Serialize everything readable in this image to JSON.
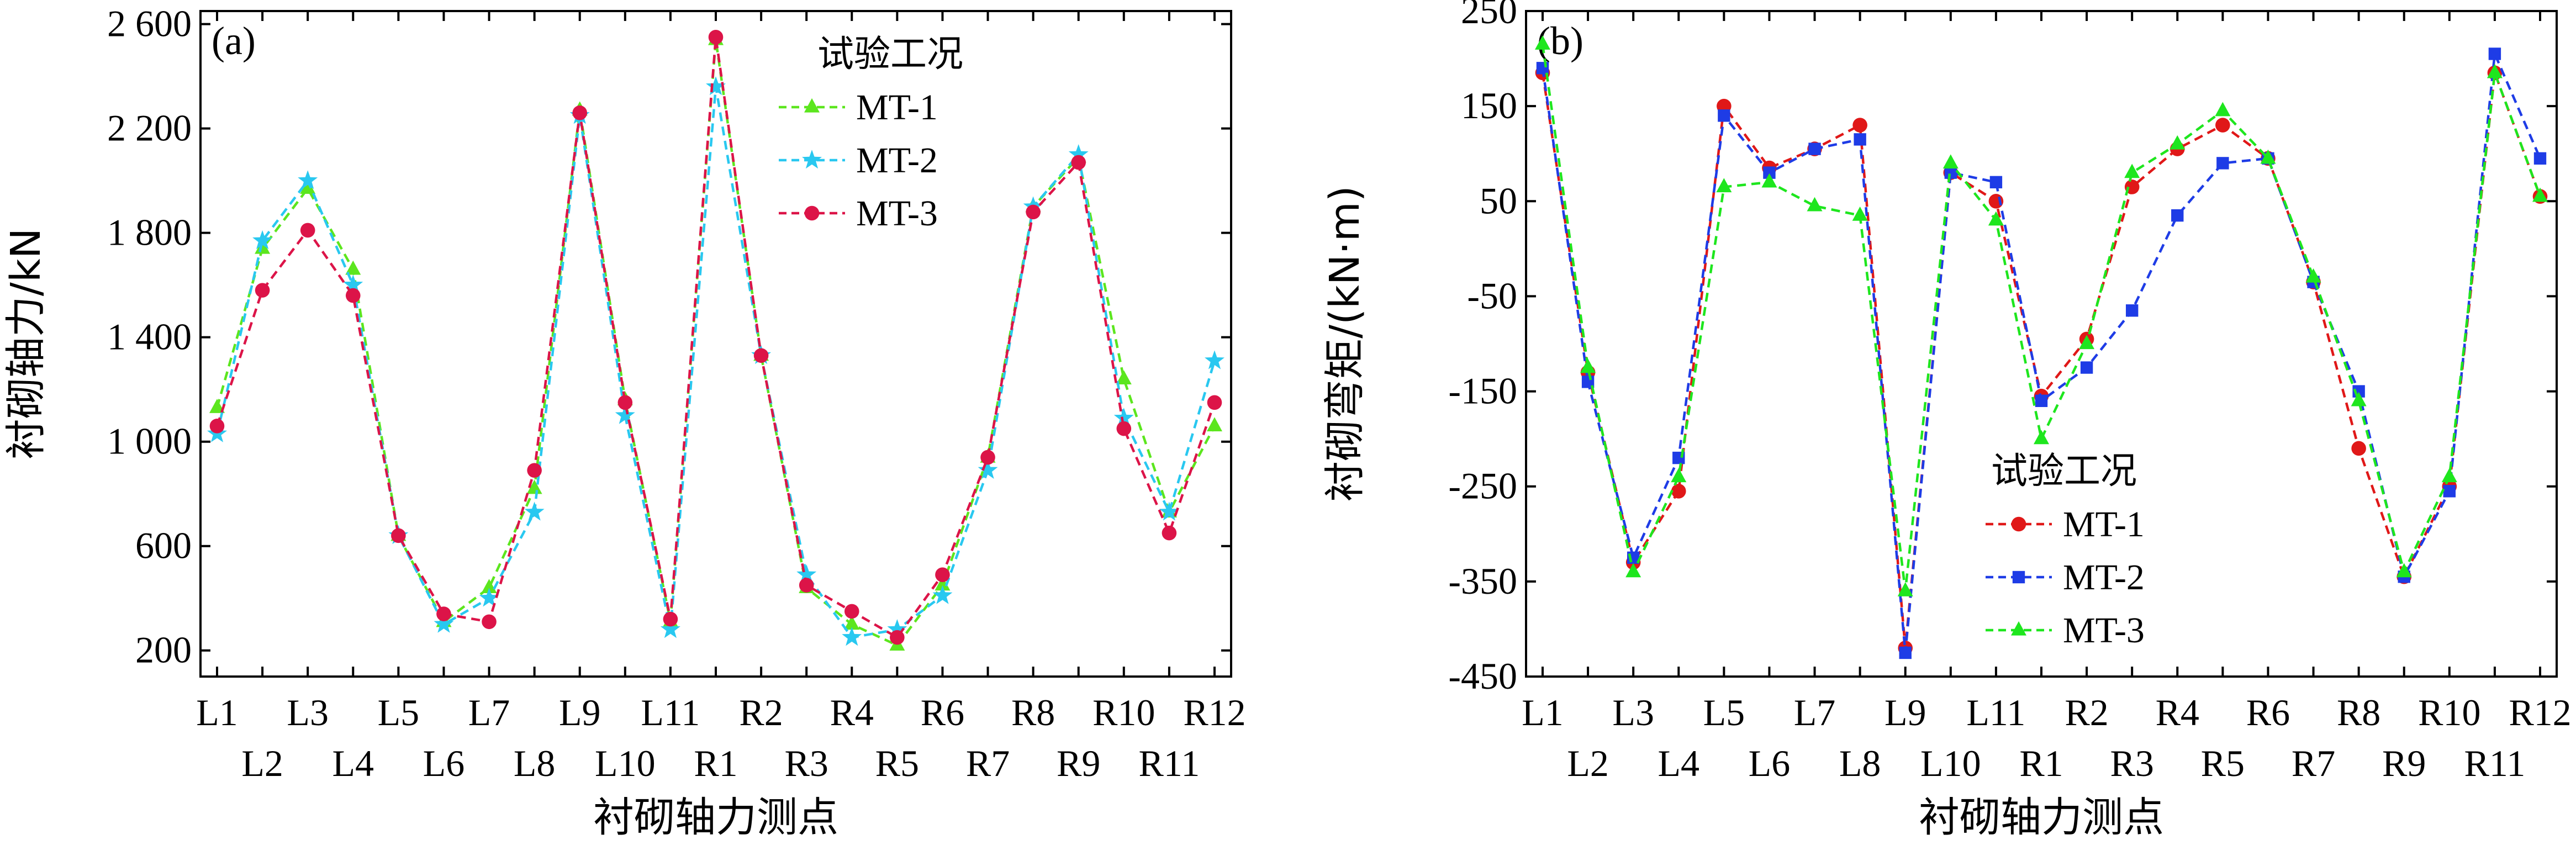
{
  "chart_data": [
    {
      "type": "line",
      "panel_label": "(a)",
      "title": "",
      "xlabel": "衬砌轴力测点",
      "ylabel": "衬砌轴力/kN",
      "ylim": [
        100,
        2650
      ],
      "yticks": [
        200,
        600,
        1000,
        1400,
        1800,
        2200,
        2600
      ],
      "ytick_labels": [
        "200",
        "600",
        "1 000",
        "1 400",
        "1 800",
        "2 200",
        "2 600"
      ],
      "categories": [
        "L1",
        "L2",
        "L3",
        "L4",
        "L5",
        "L6",
        "L7",
        "L8",
        "L9",
        "L10",
        "L11",
        "R1",
        "R2",
        "R3",
        "R4",
        "R5",
        "R6",
        "R7",
        "R8",
        "R9",
        "R10",
        "R11",
        "R12"
      ],
      "legend_title": "试验工况",
      "legend_position": "top-right",
      "series": [
        {
          "name": "MT-1",
          "color": "#5ce61e",
          "marker": "triangle",
          "values": [
            1130,
            1740,
            1970,
            1660,
            640,
            310,
            440,
            820,
            2270,
            1160,
            310,
            2540,
            1330,
            440,
            300,
            220,
            450,
            940,
            1900,
            2090,
            1240,
            730,
            1060
          ]
        },
        {
          "name": "MT-2",
          "color": "#29c8f0",
          "marker": "star",
          "values": [
            1030,
            1770,
            2000,
            1600,
            640,
            300,
            400,
            730,
            2250,
            1100,
            280,
            2360,
            1330,
            490,
            250,
            280,
            410,
            890,
            1900,
            2100,
            1090,
            730,
            1310
          ]
        },
        {
          "name": "MT-3",
          "color": "#dc1448",
          "marker": "circle",
          "values": [
            1060,
            1580,
            1810,
            1560,
            640,
            340,
            310,
            890,
            2260,
            1150,
            320,
            2550,
            1330,
            450,
            350,
            250,
            490,
            940,
            1880,
            2070,
            1050,
            650,
            1150
          ]
        }
      ]
    },
    {
      "type": "line",
      "panel_label": "(b)",
      "title": "",
      "xlabel": "衬砌轴力测点",
      "ylabel": "衬砌弯矩/(kN·m)",
      "ylim": [
        -450,
        250
      ],
      "yticks": [
        -450,
        -350,
        -250,
        -150,
        -50,
        50,
        150,
        250
      ],
      "ytick_labels": [
        "-450",
        "-350",
        "-250",
        "-150",
        "-50",
        "50",
        "150",
        "250"
      ],
      "categories": [
        "L1",
        "L2",
        "L3",
        "L4",
        "L5",
        "L6",
        "L7",
        "L8",
        "L9",
        "L10",
        "L11",
        "R1",
        "R2",
        "R3",
        "R4",
        "R5",
        "R6",
        "R7",
        "R8",
        "R9",
        "R10",
        "R11",
        "R12"
      ],
      "legend_title": "试验工况",
      "legend_position": "bottom-center",
      "series": [
        {
          "name": "MT-1",
          "color": "#e01818",
          "marker": "circle",
          "values": [
            185,
            -130,
            -330,
            -255,
            150,
            85,
            105,
            130,
            -420,
            80,
            50,
            -155,
            -95,
            65,
            105,
            130,
            95,
            -35,
            -210,
            -345,
            -250,
            185,
            55
          ]
        },
        {
          "name": "MT-2",
          "color": "#1e3ce6",
          "marker": "square",
          "values": [
            190,
            -140,
            -325,
            -220,
            140,
            80,
            105,
            115,
            -425,
            80,
            70,
            -160,
            -125,
            -65,
            35,
            90,
            95,
            -35,
            -150,
            -345,
            -255,
            205,
            95
          ]
        },
        {
          "name": "MT-3",
          "color": "#1ee61e",
          "marker": "triangle",
          "values": [
            215,
            -125,
            -340,
            -240,
            65,
            70,
            45,
            35,
            -360,
            90,
            30,
            -200,
            -100,
            80,
            110,
            145,
            95,
            -30,
            -160,
            -340,
            -240,
            185,
            55
          ]
        }
      ]
    }
  ]
}
